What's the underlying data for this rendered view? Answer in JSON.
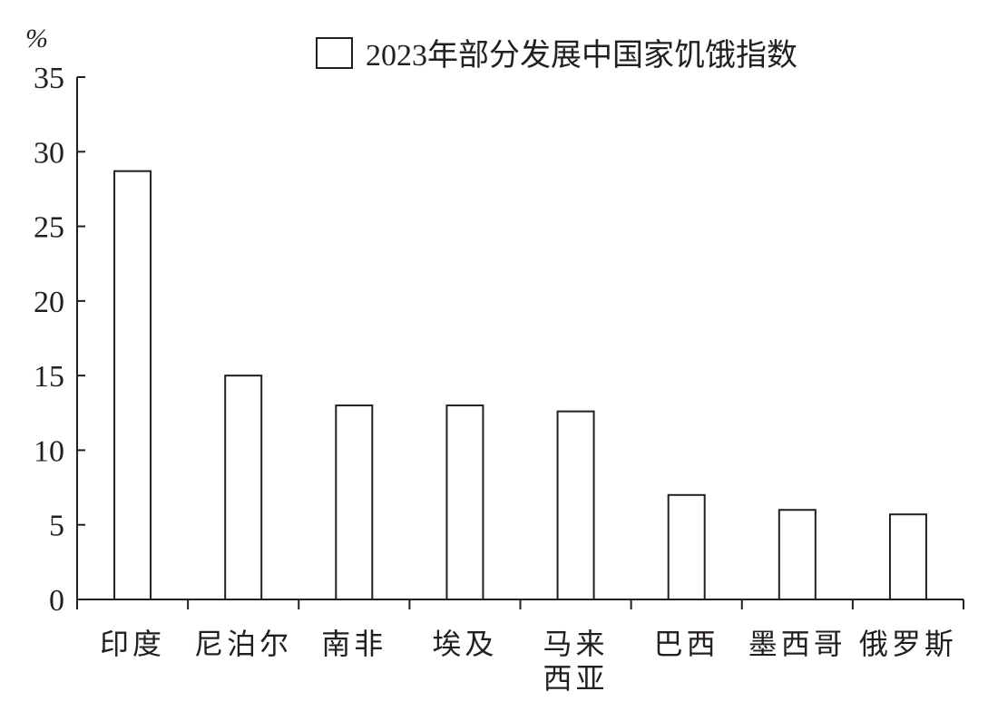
{
  "chart_data": {
    "type": "bar",
    "y_label": "%",
    "categories": [
      "印度",
      "尼泊尔",
      "南非",
      "埃及",
      "马来西亚",
      "巴西",
      "墨西哥",
      "俄罗斯"
    ],
    "series": [
      {
        "name": "2023年部分发展中国家饥饿指数",
        "color": "#ffffff",
        "values": [
          28.7,
          15.0,
          13.0,
          13.0,
          12.6,
          7.0,
          6.0,
          5.7
        ]
      }
    ],
    "ylim": [
      0,
      35
    ],
    "yticks": [
      0,
      5,
      10,
      15,
      20,
      25,
      30,
      35
    ],
    "legend": "top-right",
    "grid": false
  }
}
